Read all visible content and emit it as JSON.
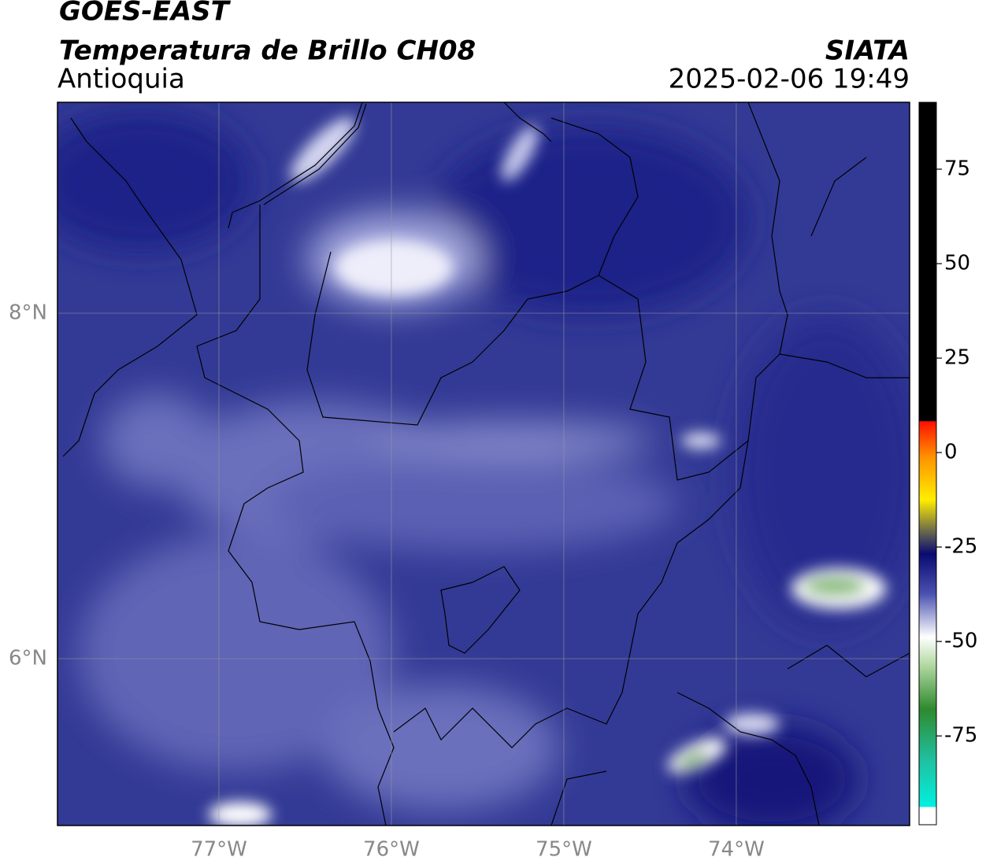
{
  "header": {
    "title": "GOES-EAST",
    "subtitle": "Temperatura de Brillo CH08",
    "region": "Antioquia",
    "source": "SIATA",
    "datetime": "2025-02-06 19:49"
  },
  "map": {
    "xlim": [
      -77.936,
      -72.995
    ],
    "ylim": [
      5.034,
      9.221
    ],
    "xticks": [
      {
        "value": -77,
        "label": "77°W"
      },
      {
        "value": -76,
        "label": "76°W"
      },
      {
        "value": -75,
        "label": "75°W"
      },
      {
        "value": -74,
        "label": "74°W"
      }
    ],
    "yticks": [
      {
        "value": 6,
        "label": "6°N"
      },
      {
        "value": 8,
        "label": "8°N"
      }
    ],
    "grid": true
  },
  "colorbar": {
    "lim": [
      -98.5,
      92.7
    ],
    "ticks": [
      -75,
      -50,
      -25,
      0,
      25,
      50,
      75
    ]
  }
}
